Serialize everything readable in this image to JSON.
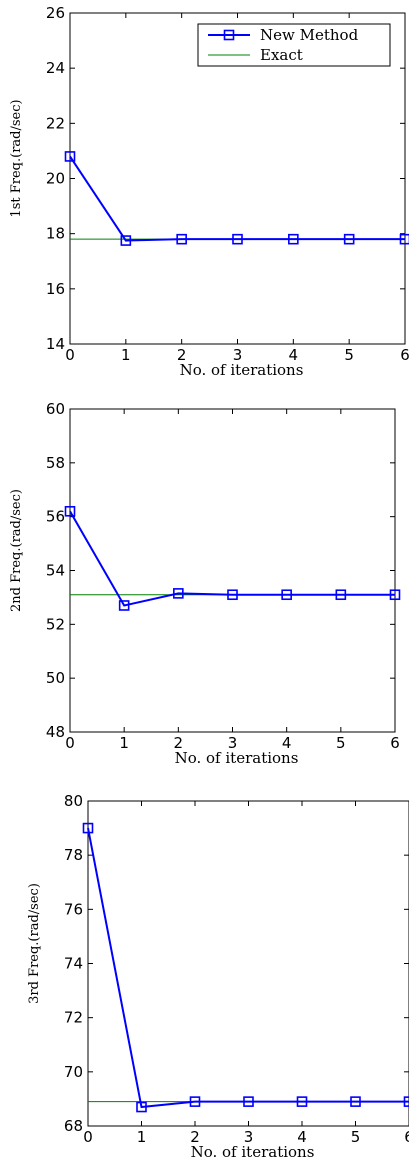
{
  "chart_data": [
    {
      "type": "line",
      "xlabel": "No. of iterations",
      "ylabel": "1st Freq.(rad/sec)",
      "xlim": [
        0,
        6
      ],
      "ylim": [
        14,
        26
      ],
      "xticks": [
        "0",
        "1",
        "2",
        "3",
        "4",
        "5",
        "6"
      ],
      "yticks": [
        "14",
        "16",
        "18",
        "20",
        "22",
        "24",
        "26"
      ],
      "legend": {
        "placement": "top-right",
        "entries": [
          "New Method",
          "Exact"
        ]
      },
      "series": [
        {
          "name": "New Method",
          "color": "#0000ff",
          "marker": "square",
          "x": [
            0,
            1,
            2,
            3,
            4,
            5,
            6
          ],
          "y": [
            20.8,
            17.75,
            17.8,
            17.8,
            17.8,
            17.8,
            17.8
          ]
        },
        {
          "name": "Exact",
          "color": "#008000",
          "marker": "none",
          "x": [
            0,
            6
          ],
          "y": [
            17.8,
            17.8
          ]
        }
      ]
    },
    {
      "type": "line",
      "xlabel": "No. of iterations",
      "ylabel": "2nd Freq.(rad/sec)",
      "xlim": [
        0,
        6
      ],
      "ylim": [
        48,
        60
      ],
      "xticks": [
        "0",
        "1",
        "2",
        "3",
        "4",
        "5",
        "6"
      ],
      "yticks": [
        "48",
        "50",
        "52",
        "54",
        "56",
        "58",
        "60"
      ],
      "series": [
        {
          "name": "New Method",
          "color": "#0000ff",
          "marker": "square",
          "x": [
            0,
            1,
            2,
            3,
            4,
            5,
            6
          ],
          "y": [
            56.2,
            52.7,
            53.15,
            53.1,
            53.1,
            53.1,
            53.1
          ]
        },
        {
          "name": "Exact",
          "color": "#008000",
          "marker": "none",
          "x": [
            0,
            6
          ],
          "y": [
            53.1,
            53.1
          ]
        }
      ]
    },
    {
      "type": "line",
      "xlabel": "No. of iterations",
      "ylabel": "3rd Freq.(rad/sec)",
      "xlim": [
        0,
        6
      ],
      "ylim": [
        68,
        80
      ],
      "xticks": [
        "0",
        "1",
        "2",
        "3",
        "4",
        "5",
        "6"
      ],
      "yticks": [
        "68",
        "70",
        "72",
        "74",
        "76",
        "78",
        "80"
      ],
      "series": [
        {
          "name": "New Method",
          "color": "#0000ff",
          "marker": "square",
          "x": [
            0,
            1,
            2,
            3,
            4,
            5,
            6
          ],
          "y": [
            79.0,
            68.7,
            68.9,
            68.9,
            68.9,
            68.9,
            68.9
          ]
        },
        {
          "name": "Exact",
          "color": "#008000",
          "marker": "none",
          "x": [
            0,
            6
          ],
          "y": [
            68.9,
            68.9
          ]
        }
      ]
    }
  ]
}
